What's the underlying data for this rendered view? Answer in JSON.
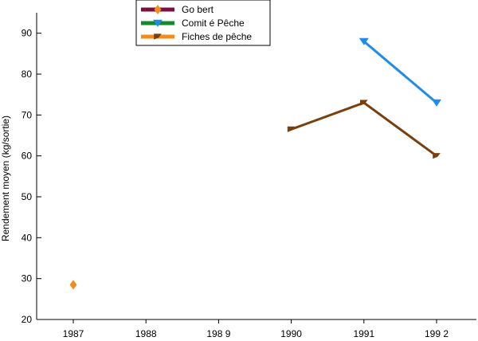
{
  "chart_data": {
    "type": "line",
    "ylabel": "Rendement moyen (kg/sortie)",
    "xlabel": "",
    "categories": [
      "1987",
      "1988",
      "1989",
      "1990",
      "1991",
      "1992"
    ],
    "x_tick_labels": [
      "1987",
      "1988",
      "198 9",
      "1990",
      "1991",
      "199 2"
    ],
    "ylim": [
      20,
      95
    ],
    "yticks": [
      20,
      30,
      40,
      50,
      60,
      70,
      80,
      90
    ],
    "grid": false,
    "legend_position": "top-left",
    "series": [
      {
        "name": "Gobert",
        "legend_label": "Go bert",
        "x": [
          1987
        ],
        "values": [
          28.5
        ],
        "line_color": "#7b1040",
        "marker_color": "#f28c1c",
        "marker": "diamond"
      },
      {
        "name": "Comité Pêche",
        "legend_label": "Comit é Pêche",
        "x": [
          1991,
          1992
        ],
        "values": [
          88,
          73
        ],
        "line_color": "#1e8ce8",
        "legend_line_color": "#138a2b",
        "marker_color": "#1e8ce8",
        "marker": "triangle-down"
      },
      {
        "name": "Fiches de pêche",
        "legend_label": "Fiches de pêche",
        "x": [
          1990,
          1991,
          1992
        ],
        "values": [
          66.5,
          73,
          60
        ],
        "line_color": "#7a3f0e",
        "legend_line_color": "#f28c1c",
        "marker_color": "#7a3f0e",
        "marker": "flag"
      }
    ]
  }
}
